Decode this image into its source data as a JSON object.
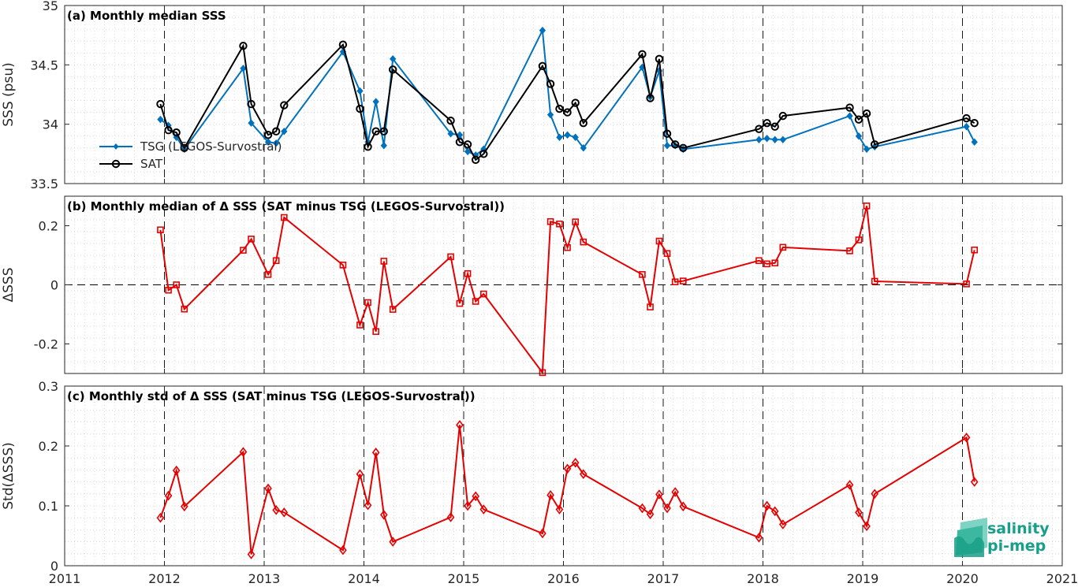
{
  "chart_data": [
    {
      "type": "line",
      "title": "(a) Monthly median SSS",
      "ylabel": "SSS (psu)",
      "ylim": [
        33.5,
        35
      ],
      "yticks": [
        33.5,
        34,
        34.5,
        35
      ],
      "ytick_labels": [
        "33.5",
        "34",
        "34.5",
        "35"
      ],
      "xlim": [
        2011,
        2021
      ],
      "xticks": [
        2011,
        2012,
        2013,
        2014,
        2015,
        2016,
        2017,
        2018,
        2019,
        2020,
        2021
      ],
      "xtick_labels": [
        "2011",
        "2012",
        "2013",
        "2014",
        "2015",
        "2016",
        "2017",
        "2018",
        "2019",
        "2020",
        "2021"
      ],
      "grid": "dotted",
      "legend_position": "lower-left",
      "series": [
        {
          "name": "TSG (LEGOS-Survostral)",
          "color": "#0072BD",
          "marker": "filled-diamond",
          "x": [
            2011.96,
            2012.04,
            2012.12,
            2012.2,
            2012.79,
            2012.87,
            2013.04,
            2013.12,
            2013.2,
            2013.79,
            2013.96,
            2014.04,
            2014.12,
            2014.2,
            2014.29,
            2014.87,
            2014.96,
            2015.04,
            2015.12,
            2015.2,
            2015.79,
            2015.87,
            2015.96,
            2016.04,
            2016.12,
            2016.2,
            2016.79,
            2016.87,
            2016.96,
            2017.04,
            2017.12,
            2017.2,
            2017.96,
            2018.04,
            2018.12,
            2018.2,
            2018.87,
            2018.96,
            2019.04,
            2019.12,
            2020.04,
            2020.12
          ],
          "y": [
            34.04,
            33.99,
            33.89,
            33.79,
            34.47,
            34.01,
            33.85,
            33.84,
            33.94,
            34.61,
            34.28,
            33.85,
            34.19,
            33.82,
            34.55,
            33.92,
            33.91,
            33.77,
            33.74,
            33.79,
            34.79,
            34.08,
            33.89,
            33.91,
            33.89,
            33.8,
            34.48,
            34.23,
            34.45,
            33.82,
            33.82,
            33.79,
            33.87,
            33.88,
            33.87,
            33.87,
            34.07,
            33.9,
            33.79,
            33.81,
            33.98,
            33.85
          ]
        },
        {
          "name": "SAT",
          "color": "#000000",
          "marker": "open-circle",
          "x": [
            2011.96,
            2012.04,
            2012.12,
            2012.2,
            2012.79,
            2012.87,
            2013.04,
            2013.12,
            2013.2,
            2013.79,
            2013.96,
            2014.04,
            2014.12,
            2014.2,
            2014.29,
            2014.87,
            2014.96,
            2015.04,
            2015.12,
            2015.2,
            2015.79,
            2015.87,
            2015.96,
            2016.04,
            2016.12,
            2016.2,
            2016.79,
            2016.87,
            2016.96,
            2017.04,
            2017.12,
            2017.2,
            2017.96,
            2018.04,
            2018.12,
            2018.2,
            2018.87,
            2018.96,
            2019.04,
            2019.12,
            2020.04,
            2020.12
          ],
          "y": [
            34.17,
            33.95,
            33.93,
            33.8,
            34.66,
            34.17,
            33.91,
            33.94,
            34.16,
            34.67,
            34.13,
            33.81,
            33.94,
            33.94,
            34.46,
            34.03,
            33.85,
            33.83,
            33.7,
            33.75,
            34.49,
            34.34,
            34.13,
            34.1,
            34.18,
            34.01,
            34.59,
            34.22,
            34.55,
            33.92,
            33.83,
            33.8,
            33.96,
            34.01,
            33.98,
            34.07,
            34.14,
            34.04,
            34.09,
            33.83,
            34.05,
            34.01
          ]
        }
      ]
    },
    {
      "type": "line",
      "title": "(b) Monthly median of Δ SSS (SAT minus TSG (LEGOS-Survostral))",
      "ylabel": "ΔSSS",
      "ylim": [
        -0.3,
        0.3
      ],
      "yticks": [
        -0.2,
        0,
        0.2
      ],
      "ytick_labels": [
        "-0.2",
        "0",
        "0.2"
      ],
      "xlim": [
        2011,
        2021
      ],
      "xticks": [
        2011,
        2012,
        2013,
        2014,
        2015,
        2016,
        2017,
        2018,
        2019,
        2020,
        2021
      ],
      "zero_line": "dashed",
      "grid": "dotted",
      "series": [
        {
          "color": "#E50000",
          "marker": "open-square",
          "x": [
            2011.96,
            2012.04,
            2012.12,
            2012.2,
            2012.79,
            2012.87,
            2013.04,
            2013.12,
            2013.2,
            2013.79,
            2013.96,
            2014.04,
            2014.12,
            2014.2,
            2014.29,
            2014.87,
            2014.96,
            2015.04,
            2015.12,
            2015.2,
            2015.79,
            2015.87,
            2015.96,
            2016.04,
            2016.12,
            2016.2,
            2016.79,
            2016.87,
            2016.96,
            2017.04,
            2017.12,
            2017.2,
            2017.96,
            2018.04,
            2018.12,
            2018.2,
            2018.87,
            2018.96,
            2019.04,
            2019.12,
            2020.04,
            2020.12
          ],
          "y": [
            0.186,
            -0.018,
            0.0,
            -0.082,
            0.117,
            0.155,
            0.035,
            0.082,
            0.228,
            0.067,
            -0.136,
            -0.06,
            -0.158,
            0.08,
            -0.083,
            0.095,
            -0.063,
            0.038,
            -0.056,
            -0.031,
            -0.297,
            0.214,
            0.206,
            0.126,
            0.213,
            0.145,
            0.035,
            -0.075,
            0.148,
            0.106,
            0.01,
            0.013,
            0.082,
            0.071,
            0.074,
            0.127,
            0.115,
            0.152,
            0.267,
            0.012,
            0.003,
            0.118
          ]
        }
      ]
    },
    {
      "type": "line",
      "title": "(c) Monthly std of Δ SSS (SAT minus TSG (LEGOS-Survostral))",
      "ylabel": "Std(ΔSSS)",
      "ylim": [
        0,
        0.3
      ],
      "yticks": [
        0,
        0.1,
        0.2,
        0.3
      ],
      "ytick_labels": [
        "0",
        "0.1",
        "0.2",
        "0.3"
      ],
      "xlim": [
        2011,
        2021
      ],
      "xticks": [
        2011,
        2012,
        2013,
        2014,
        2015,
        2016,
        2017,
        2018,
        2019,
        2020,
        2021
      ],
      "xtick_labels": [
        "2011",
        "2012",
        "2013",
        "2014",
        "2015",
        "2016",
        "2017",
        "2018",
        "2019",
        "2020",
        "2021"
      ],
      "grid": "dotted",
      "series": [
        {
          "color": "#E50000",
          "marker": "open-diamond",
          "x": [
            2011.96,
            2012.04,
            2012.12,
            2012.2,
            2012.79,
            2012.87,
            2013.04,
            2013.12,
            2013.2,
            2013.79,
            2013.96,
            2014.04,
            2014.12,
            2014.2,
            2014.29,
            2014.87,
            2014.96,
            2015.04,
            2015.12,
            2015.2,
            2015.79,
            2015.87,
            2015.96,
            2016.04,
            2016.12,
            2016.2,
            2016.79,
            2016.87,
            2016.96,
            2017.04,
            2017.12,
            2017.2,
            2017.96,
            2018.04,
            2018.12,
            2018.2,
            2018.87,
            2018.96,
            2019.04,
            2019.12,
            2020.04,
            2020.12
          ],
          "y": [
            0.08,
            0.117,
            0.159,
            0.099,
            0.19,
            0.019,
            0.129,
            0.093,
            0.089,
            0.026,
            0.153,
            0.101,
            0.189,
            0.085,
            0.04,
            0.081,
            0.235,
            0.1,
            0.116,
            0.094,
            0.054,
            0.118,
            0.094,
            0.162,
            0.172,
            0.153,
            0.096,
            0.086,
            0.119,
            0.096,
            0.123,
            0.099,
            0.047,
            0.1,
            0.091,
            0.069,
            0.135,
            0.089,
            0.066,
            0.12,
            0.214,
            0.14
          ]
        }
      ]
    }
  ],
  "logo": {
    "line1": "salinity",
    "line2": "pi-mep",
    "color": "#17a089"
  }
}
